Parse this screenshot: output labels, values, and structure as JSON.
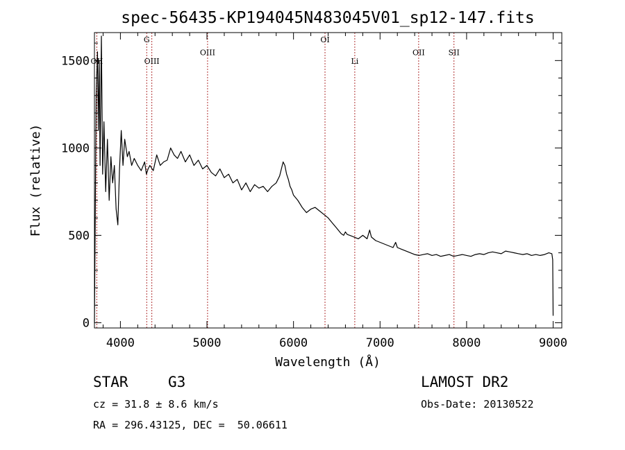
{
  "chart_data": {
    "type": "line",
    "title": "spec-56435-KP194045N483045V01_sp12-147.fits",
    "xlabel": "Wavelength (Å)",
    "ylabel": "Flux (relative)",
    "xlim": [
      3700,
      9100
    ],
    "ylim": [
      -30,
      1660
    ],
    "xticks": [
      "4000",
      "5000",
      "6000",
      "7000",
      "8000",
      "9000"
    ],
    "yticks": [
      "0",
      "500",
      "1000",
      "1500"
    ],
    "grid": false,
    "series": [
      {
        "x": [
          3700,
          3720,
          3735,
          3745,
          3755,
          3765,
          3780,
          3795,
          3810,
          3830,
          3850,
          3870,
          3890,
          3910,
          3930,
          3950,
          3970,
          3990,
          4010,
          4030,
          4050,
          4080,
          4100,
          4130,
          4160,
          4200,
          4240,
          4280,
          4300,
          4320,
          4340,
          4380,
          4420,
          4460,
          4500,
          4540,
          4580,
          4620,
          4660,
          4700,
          4750,
          4800,
          4850,
          4900,
          4950,
          5000,
          5050,
          5100,
          5150,
          5200,
          5250,
          5300,
          5350,
          5400,
          5450,
          5500,
          5550,
          5600,
          5650,
          5700,
          5750,
          5800,
          5840,
          5860,
          5880,
          5900,
          5920,
          5940,
          5960,
          5980,
          6000,
          6050,
          6100,
          6150,
          6200,
          6250,
          6300,
          6350,
          6400,
          6450,
          6500,
          6550,
          6580,
          6600,
          6620,
          6650,
          6700,
          6750,
          6800,
          6850,
          6880,
          6900,
          6950,
          7000,
          7050,
          7100,
          7150,
          7180,
          7200,
          7250,
          7300,
          7350,
          7400,
          7450,
          7500,
          7550,
          7600,
          7650,
          7700,
          7750,
          7800,
          7850,
          7900,
          7950,
          8000,
          8050,
          8100,
          8150,
          8200,
          8250,
          8300,
          8350,
          8400,
          8450,
          8500,
          8550,
          8600,
          8650,
          8700,
          8750,
          8800,
          8850,
          8900,
          8950,
          8985,
          8995,
          9000
        ],
        "y": [
          0,
          1300,
          1550,
          1100,
          1500,
          900,
          1640,
          850,
          1150,
          750,
          1050,
          700,
          950,
          800,
          900,
          650,
          560,
          880,
          1100,
          900,
          1050,
          950,
          980,
          900,
          940,
          900,
          870,
          920,
          850,
          880,
          900,
          870,
          960,
          900,
          920,
          930,
          1000,
          960,
          940,
          980,
          920,
          960,
          900,
          930,
          880,
          900,
          860,
          840,
          880,
          830,
          850,
          800,
          820,
          760,
          800,
          750,
          790,
          770,
          780,
          750,
          780,
          800,
          840,
          880,
          920,
          900,
          850,
          820,
          780,
          760,
          730,
          700,
          660,
          630,
          650,
          660,
          640,
          620,
          600,
          570,
          540,
          510,
          500,
          520,
          505,
          500,
          490,
          480,
          500,
          480,
          530,
          490,
          470,
          460,
          450,
          440,
          430,
          460,
          430,
          420,
          410,
          400,
          390,
          385,
          390,
          395,
          385,
          390,
          380,
          385,
          390,
          380,
          385,
          390,
          385,
          380,
          390,
          395,
          390,
          400,
          405,
          400,
          395,
          410,
          405,
          400,
          395,
          390,
          395,
          385,
          390,
          385,
          390,
          400,
          395,
          360,
          40
        ]
      }
    ],
    "markers": [
      {
        "x": 4304,
        "label": "G",
        "row": 1
      },
      {
        "x": 4363,
        "label": "OIII",
        "row": 2
      },
      {
        "x": 5007,
        "label": "OIII",
        "row": 1.6
      },
      {
        "x": 6364,
        "label": "OI",
        "row": 1
      },
      {
        "x": 6708,
        "label": "Li",
        "row": 2
      },
      {
        "x": 7446,
        "label": "OII",
        "row": 1.6
      },
      {
        "x": 7854,
        "label": "SII",
        "row": 1.6
      },
      {
        "x": 3727,
        "label": "OII",
        "row": 2
      }
    ]
  },
  "info": {
    "class": "STAR",
    "subclass": "G3",
    "survey": "LAMOST DR2",
    "cz": "cz = 31.8 ± 8.6 km/s",
    "obs_date": "Obs-Date: 20130522",
    "radec": "RA = 296.43125, DEC =  50.06611"
  }
}
